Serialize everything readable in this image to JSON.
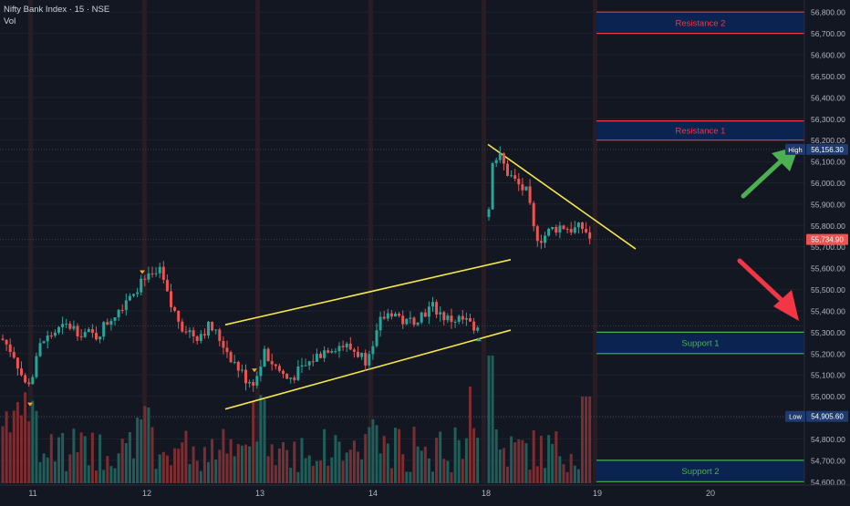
{
  "header": {
    "title": "Nifty Bank Index · 15 · NSE",
    "volume_label": "Vol"
  },
  "colors": {
    "background": "#131722",
    "up_candle": "#26a69a",
    "down_candle": "#ef5350",
    "trendline": "#f5e64a",
    "resistance": "#f23645",
    "support": "#4caf50",
    "zone_fill": "#0b2350",
    "axis_text": "#b2b5be",
    "green_arrow": "#4caf50",
    "red_arrow": "#f23645"
  },
  "y_axis": {
    "ticks": [
      "56,800.00",
      "56,700.00",
      "56,600.00",
      "56,500.00",
      "56,400.00",
      "56,300.00",
      "56,200.00",
      "56,100.00",
      "56,000.00",
      "55,900.00",
      "55,800.00",
      "55,700.00",
      "55,600.00",
      "55,500.00",
      "55,400.00",
      "55,300.00",
      "55,200.00",
      "55,100.00",
      "55,000.00",
      "54,900.00",
      "54,800.00",
      "54,700.00",
      "54,600.00"
    ],
    "range": [
      54550,
      56835
    ]
  },
  "x_axis": {
    "labels": [
      "11",
      "12",
      "13",
      "14",
      "18",
      "19",
      "20"
    ]
  },
  "price_tags": {
    "high": {
      "label": "High",
      "value": "56,156.30",
      "price": 56156.3
    },
    "current": {
      "value": "55,734.90",
      "price": 55734.9
    },
    "low": {
      "label": "Low",
      "value": "54,905.60",
      "price": 54905.6
    }
  },
  "zones": [
    {
      "label": "Resistance 2",
      "top": 56800,
      "bottom": 56700,
      "type": "resistance"
    },
    {
      "label": "Resistance 1",
      "top": 56290,
      "bottom": 56200,
      "type": "resistance"
    },
    {
      "label": "Support 1",
      "top": 55300,
      "bottom": 55200,
      "type": "support"
    },
    {
      "label": "Support 2",
      "top": 54700,
      "bottom": 54600,
      "type": "support"
    }
  ],
  "chart_data": {
    "type": "candlestick",
    "instrument": "Nifty Bank Index",
    "timeframe": "15",
    "exchange": "NSE",
    "sessions": [
      "11",
      "12",
      "13",
      "14",
      "18",
      "19"
    ],
    "key_levels": {
      "high": 56156.3,
      "current": 55734.9,
      "low": 54905.6
    },
    "trendlines": [
      {
        "name": "channel-upper",
        "points": [
          [
            55320,
            "13 open"
          ],
          [
            55640,
            "14 end"
          ]
        ]
      },
      {
        "name": "channel-lower",
        "points": [
          [
            54940,
            "13 open"
          ],
          [
            55310,
            "14 end"
          ]
        ]
      },
      {
        "name": "descending",
        "points": [
          [
            56170,
            "18 open"
          ],
          [
            55710,
            "19 next"
          ]
        ]
      }
    ]
  }
}
